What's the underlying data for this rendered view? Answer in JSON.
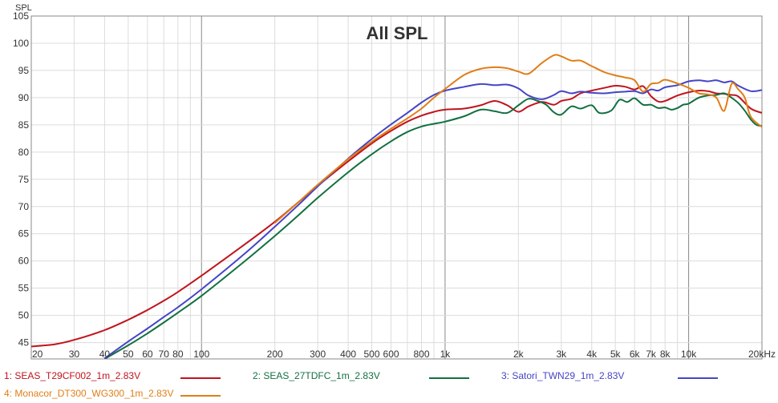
{
  "chart_data": {
    "type": "line",
    "title": "All SPL",
    "ylabel": "SPL",
    "xlabel": "",
    "x_scale": "log",
    "xlim": [
      20,
      20000
    ],
    "ylim": [
      42,
      105
    ],
    "grid": true,
    "y_ticks": [
      105,
      100,
      95,
      90,
      85,
      80,
      75,
      70,
      65,
      60,
      55,
      50,
      45
    ],
    "x_ticks": [
      {
        "value": 20,
        "label": "20"
      },
      {
        "value": 30,
        "label": "30"
      },
      {
        "value": 40,
        "label": "40"
      },
      {
        "value": 50,
        "label": "50"
      },
      {
        "value": 60,
        "label": "60"
      },
      {
        "value": 70,
        "label": "70"
      },
      {
        "value": 80,
        "label": "80"
      },
      {
        "value": 100,
        "label": "100"
      },
      {
        "value": 200,
        "label": "200"
      },
      {
        "value": 300,
        "label": "300"
      },
      {
        "value": 400,
        "label": "400"
      },
      {
        "value": 500,
        "label": "500"
      },
      {
        "value": 600,
        "label": "600"
      },
      {
        "value": 800,
        "label": "800"
      },
      {
        "value": 1000,
        "label": "1k"
      },
      {
        "value": 2000,
        "label": "2k"
      },
      {
        "value": 3000,
        "label": "3k"
      },
      {
        "value": 4000,
        "label": "4k"
      },
      {
        "value": 5000,
        "label": "5k"
      },
      {
        "value": 6000,
        "label": "6k"
      },
      {
        "value": 7000,
        "label": "7k"
      },
      {
        "value": 8000,
        "label": "8k"
      },
      {
        "value": 10000,
        "label": "10k"
      },
      {
        "value": 20000,
        "label": "20kHz"
      }
    ],
    "series": [
      {
        "name": "1: SEAS_T29CF002_1m_2.83V",
        "color": "#c0141c",
        "points": [
          [
            20,
            44.3
          ],
          [
            25,
            44.7
          ],
          [
            30,
            45.5
          ],
          [
            40,
            47.3
          ],
          [
            50,
            49.2
          ],
          [
            60,
            51.0
          ],
          [
            70,
            52.7
          ],
          [
            80,
            54.3
          ],
          [
            100,
            57.3
          ],
          [
            150,
            63.0
          ],
          [
            200,
            67.2
          ],
          [
            250,
            70.8
          ],
          [
            300,
            73.8
          ],
          [
            400,
            78.3
          ],
          [
            500,
            81.6
          ],
          [
            600,
            83.9
          ],
          [
            700,
            85.6
          ],
          [
            800,
            86.7
          ],
          [
            900,
            87.4
          ],
          [
            1000,
            87.8
          ],
          [
            1200,
            88.0
          ],
          [
            1400,
            88.6
          ],
          [
            1600,
            89.4
          ],
          [
            1800,
            88.6
          ],
          [
            2000,
            87.4
          ],
          [
            2200,
            88.4
          ],
          [
            2500,
            89.2
          ],
          [
            2800,
            88.7
          ],
          [
            3000,
            89.4
          ],
          [
            3300,
            89.8
          ],
          [
            3600,
            90.8
          ],
          [
            4000,
            91.3
          ],
          [
            4500,
            91.8
          ],
          [
            5000,
            92.2
          ],
          [
            5500,
            92.0
          ],
          [
            6000,
            91.5
          ],
          [
            6500,
            92.1
          ],
          [
            7000,
            90.3
          ],
          [
            7500,
            89.3
          ],
          [
            8000,
            89.4
          ],
          [
            9000,
            90.4
          ],
          [
            10000,
            91.0
          ],
          [
            11000,
            91.3
          ],
          [
            12000,
            91.2
          ],
          [
            13000,
            90.8
          ],
          [
            14000,
            90.7
          ],
          [
            15000,
            90.5
          ],
          [
            16000,
            90.2
          ],
          [
            18000,
            88.0
          ],
          [
            20000,
            87.2
          ]
        ]
      },
      {
        "name": "2: SEAS_27TDFC_1m_2.83V",
        "color": "#127040",
        "points": [
          [
            40,
            42.0
          ],
          [
            50,
            44.5
          ],
          [
            60,
            46.7
          ],
          [
            70,
            48.7
          ],
          [
            80,
            50.5
          ],
          [
            100,
            53.6
          ],
          [
            150,
            59.9
          ],
          [
            200,
            64.6
          ],
          [
            250,
            68.4
          ],
          [
            300,
            71.6
          ],
          [
            400,
            76.3
          ],
          [
            500,
            79.6
          ],
          [
            600,
            82.0
          ],
          [
            700,
            83.7
          ],
          [
            800,
            84.7
          ],
          [
            900,
            85.2
          ],
          [
            1000,
            85.6
          ],
          [
            1200,
            86.6
          ],
          [
            1400,
            87.8
          ],
          [
            1600,
            87.5
          ],
          [
            1800,
            87.2
          ],
          [
            2000,
            88.6
          ],
          [
            2200,
            89.8
          ],
          [
            2400,
            89.4
          ],
          [
            2600,
            88.7
          ],
          [
            2800,
            87.3
          ],
          [
            3000,
            86.9
          ],
          [
            3300,
            88.4
          ],
          [
            3600,
            88.0
          ],
          [
            4000,
            88.6
          ],
          [
            4300,
            87.2
          ],
          [
            4800,
            87.6
          ],
          [
            5200,
            89.6
          ],
          [
            5600,
            89.2
          ],
          [
            6000,
            89.9
          ],
          [
            6500,
            88.7
          ],
          [
            7000,
            88.7
          ],
          [
            7500,
            88.1
          ],
          [
            8000,
            88.2
          ],
          [
            8500,
            87.8
          ],
          [
            9000,
            88.1
          ],
          [
            9500,
            88.7
          ],
          [
            10000,
            88.9
          ],
          [
            11000,
            90.0
          ],
          [
            12000,
            90.4
          ],
          [
            13000,
            90.5
          ],
          [
            14000,
            90.8
          ],
          [
            15000,
            90.0
          ],
          [
            16000,
            89.0
          ],
          [
            17000,
            87.6
          ],
          [
            18000,
            86.0
          ],
          [
            19000,
            85.0
          ],
          [
            20000,
            84.8
          ]
        ]
      },
      {
        "name": "3: Satori_TWN29_1m_2.83V",
        "color": "#4545c6",
        "points": [
          [
            40,
            42.1
          ],
          [
            50,
            45.2
          ],
          [
            60,
            47.6
          ],
          [
            70,
            49.7
          ],
          [
            80,
            51.5
          ],
          [
            100,
            54.8
          ],
          [
            150,
            61.3
          ],
          [
            200,
            66.3
          ],
          [
            250,
            70.3
          ],
          [
            300,
            73.7
          ],
          [
            400,
            78.8
          ],
          [
            500,
            82.4
          ],
          [
            600,
            85.1
          ],
          [
            700,
            87.2
          ],
          [
            800,
            89.1
          ],
          [
            900,
            90.5
          ],
          [
            1000,
            91.3
          ],
          [
            1200,
            92.0
          ],
          [
            1400,
            92.5
          ],
          [
            1600,
            92.3
          ],
          [
            1800,
            92.4
          ],
          [
            2000,
            91.7
          ],
          [
            2200,
            90.4
          ],
          [
            2500,
            89.7
          ],
          [
            2800,
            90.5
          ],
          [
            3000,
            91.2
          ],
          [
            3300,
            90.8
          ],
          [
            3600,
            91.1
          ],
          [
            4000,
            90.9
          ],
          [
            4500,
            90.8
          ],
          [
            5000,
            91.0
          ],
          [
            5500,
            91.1
          ],
          [
            6000,
            91.2
          ],
          [
            6500,
            90.8
          ],
          [
            7000,
            91.5
          ],
          [
            7500,
            91.3
          ],
          [
            8000,
            91.9
          ],
          [
            9000,
            92.3
          ],
          [
            10000,
            93.0
          ],
          [
            11000,
            93.2
          ],
          [
            12000,
            93.0
          ],
          [
            13000,
            93.2
          ],
          [
            14000,
            92.8
          ],
          [
            15000,
            93.0
          ],
          [
            16000,
            92.2
          ],
          [
            18000,
            91.2
          ],
          [
            20000,
            91.4
          ]
        ]
      },
      {
        "name": "4: Monacor_DT300_WG300_1m_2.83V",
        "color": "#e07e17",
        "points": [
          [
            200,
            67.0
          ],
          [
            250,
            70.8
          ],
          [
            300,
            74.0
          ],
          [
            400,
            78.7
          ],
          [
            500,
            81.9
          ],
          [
            600,
            84.3
          ],
          [
            700,
            86.2
          ],
          [
            800,
            88.0
          ],
          [
            900,
            90.0
          ],
          [
            1000,
            91.6
          ],
          [
            1200,
            94.2
          ],
          [
            1400,
            95.3
          ],
          [
            1600,
            95.6
          ],
          [
            1800,
            95.4
          ],
          [
            2000,
            94.8
          ],
          [
            2200,
            94.4
          ],
          [
            2500,
            96.4
          ],
          [
            2800,
            97.8
          ],
          [
            3000,
            97.6
          ],
          [
            3300,
            96.8
          ],
          [
            3600,
            96.8
          ],
          [
            4000,
            95.8
          ],
          [
            4500,
            94.7
          ],
          [
            5000,
            94.1
          ],
          [
            5500,
            93.7
          ],
          [
            6000,
            93.2
          ],
          [
            6500,
            91.1
          ],
          [
            7000,
            92.5
          ],
          [
            7500,
            92.7
          ],
          [
            8000,
            93.3
          ],
          [
            9000,
            92.6
          ],
          [
            10000,
            91.8
          ],
          [
            11000,
            90.8
          ],
          [
            12000,
            90.6
          ],
          [
            13000,
            90.0
          ],
          [
            14000,
            87.6
          ],
          [
            15000,
            92.5
          ],
          [
            16000,
            91.5
          ],
          [
            17000,
            90.0
          ],
          [
            18000,
            86.5
          ],
          [
            20000,
            84.6
          ]
        ]
      }
    ]
  }
}
